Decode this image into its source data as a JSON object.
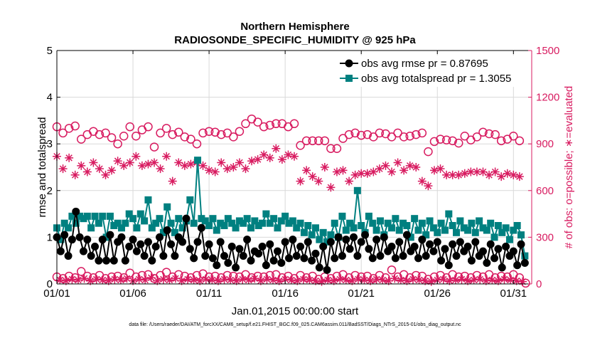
{
  "chart_data": {
    "type": "line",
    "title": "Northern Hemisphere",
    "subtitle": "RADIOSONDE_SPECIFIC_HUMIDITY @ 925 hPa",
    "xlabel": "Jan.01,2015 00:00:00 start",
    "ylabel": "rmse and totalspread",
    "y2label": "# of obs: o=possible; ∗=evaluated",
    "footnote": "data file: /Users/raeder/DAI/ATM_forcXX/CAM6_setup/f.e21.FHIST_BGC.f09_025.CAM6assim.011/BadSST/Diags_NTrS_2015-01/obs_diag_output.nc",
    "xlim": [
      1,
      32.2
    ],
    "ylim": [
      0,
      5
    ],
    "y2lim": [
      0,
      1500
    ],
    "xticks": [
      1,
      6,
      11,
      16,
      21,
      26,
      31
    ],
    "xtick_labels": [
      "01/01",
      "01/06",
      "01/11",
      "01/16",
      "01/21",
      "01/26",
      "01/31"
    ],
    "yticks": [
      0,
      1,
      2,
      3,
      4,
      5
    ],
    "y2ticks": [
      0,
      300,
      600,
      900,
      1200,
      1500
    ],
    "grid": true,
    "legend_position": "top-right",
    "colors": {
      "rmse": "#000000",
      "spread": "#008080",
      "obs_count": "#d81b60",
      "axis": "#000000",
      "grid": "#d9d9d9"
    },
    "x": [
      1.0,
      1.25,
      1.5,
      1.75,
      2.0,
      2.25,
      2.5,
      2.75,
      3.0,
      3.25,
      3.5,
      3.75,
      4.0,
      4.25,
      4.5,
      4.75,
      5.0,
      5.25,
      5.5,
      5.75,
      6.0,
      6.25,
      6.5,
      6.75,
      7.0,
      7.25,
      7.5,
      7.75,
      8.0,
      8.25,
      8.5,
      8.75,
      9.0,
      9.25,
      9.5,
      9.75,
      10.0,
      10.25,
      10.5,
      10.75,
      11.0,
      11.25,
      11.5,
      11.75,
      12.0,
      12.25,
      12.5,
      12.75,
      13.0,
      13.25,
      13.5,
      13.75,
      14.0,
      14.25,
      14.5,
      14.75,
      15.0,
      15.25,
      15.5,
      15.75,
      16.0,
      16.25,
      16.5,
      16.75,
      17.0,
      17.25,
      17.5,
      17.75,
      18.0,
      18.25,
      18.5,
      18.75,
      19.0,
      19.25,
      19.5,
      19.75,
      20.0,
      20.25,
      20.5,
      20.75,
      21.0,
      21.25,
      21.5,
      21.75,
      22.0,
      22.25,
      22.5,
      22.75,
      23.0,
      23.25,
      23.5,
      23.75,
      24.0,
      24.25,
      24.5,
      24.75,
      25.0,
      25.25,
      25.5,
      25.75,
      26.0,
      26.25,
      26.5,
      26.75,
      27.0,
      27.25,
      27.5,
      27.75,
      28.0,
      28.25,
      28.5,
      28.75,
      29.0,
      29.25,
      29.5,
      29.75,
      30.0,
      30.25,
      30.5,
      30.75,
      31.0,
      31.25,
      31.5,
      31.75
    ],
    "series": [
      {
        "name": "obs avg rmse pr = 0.87695",
        "axis": "left",
        "marker": "filled-circle",
        "values": [
          1.0,
          0.7,
          1.05,
          0.6,
          0.95,
          1.55,
          1.0,
          0.7,
          0.95,
          0.6,
          0.8,
          0.5,
          0.95,
          0.5,
          1.05,
          0.5,
          0.9,
          1.0,
          0.5,
          0.8,
          0.95,
          0.7,
          0.85,
          0.6,
          0.9,
          0.5,
          0.8,
          1.0,
          0.6,
          1.15,
          0.85,
          0.6,
          1.0,
          0.9,
          1.4,
          0.75,
          0.55,
          0.9,
          1.2,
          0.6,
          0.85,
          0.55,
          0.4,
          0.9,
          0.6,
          0.45,
          0.8,
          0.35,
          0.75,
          0.6,
          0.95,
          0.5,
          0.7,
          0.65,
          0.8,
          0.4,
          0.85,
          0.5,
          0.7,
          0.45,
          0.9,
          0.55,
          0.95,
          0.6,
          0.8,
          0.55,
          0.9,
          0.5,
          0.65,
          0.35,
          0.8,
          0.3,
          0.9,
          0.55,
          1.0,
          0.6,
          0.95,
          0.75,
          1.0,
          0.6,
          0.9,
          1.05,
          0.75,
          0.55,
          0.95,
          0.6,
          1.0,
          0.7,
          0.8,
          0.55,
          0.9,
          0.6,
          1.05,
          0.7,
          0.8,
          0.55,
          0.95,
          0.6,
          0.85,
          0.7,
          0.9,
          0.5,
          0.75,
          0.4,
          0.85,
          0.6,
          0.9,
          0.7,
          0.8,
          0.5,
          0.9,
          0.6,
          0.7,
          0.45,
          0.85,
          0.55,
          0.75,
          0.35,
          0.8,
          0.6,
          0.7,
          0.4,
          0.85,
          0.45
        ]
      },
      {
        "name": "obs avg totalspread pr = 1.3055",
        "axis": "left",
        "marker": "filled-square",
        "values": [
          1.2,
          0.95,
          1.3,
          1.2,
          1.45,
          1.3,
          1.45,
          1.4,
          1.45,
          1.2,
          1.45,
          1.3,
          1.45,
          1.0,
          1.45,
          1.25,
          1.3,
          1.2,
          1.3,
          1.5,
          1.4,
          1.2,
          1.5,
          1.35,
          1.8,
          1.2,
          1.3,
          1.4,
          1.1,
          1.65,
          1.3,
          1.1,
          1.4,
          1.2,
          1.35,
          1.8,
          1.3,
          2.65,
          1.4,
          1.35,
          1.25,
          1.4,
          1.15,
          1.3,
          1.25,
          1.4,
          1.3,
          1.2,
          1.35,
          1.3,
          1.4,
          1.2,
          1.35,
          1.25,
          1.3,
          1.5,
          1.3,
          1.4,
          1.2,
          1.35,
          1.45,
          1.3,
          1.35,
          1.2,
          1.3,
          1.1,
          1.25,
          1.05,
          1.2,
          0.95,
          1.1,
          0.9,
          1.05,
          1.3,
          1.0,
          1.45,
          1.15,
          1.3,
          1.2,
          2.0,
          1.25,
          1.1,
          1.45,
          1.3,
          1.15,
          1.35,
          1.05,
          1.3,
          1.2,
          1.4,
          1.15,
          1.3,
          1.25,
          1.0,
          1.4,
          1.15,
          1.3,
          1.05,
          1.35,
          1.2,
          1.1,
          1.3,
          1.15,
          1.5,
          1.25,
          1.1,
          1.35,
          1.2,
          1.15,
          1.3,
          1.1,
          1.35,
          1.2,
          1.15,
          1.3,
          1.0,
          1.25,
          1.1,
          1.2,
          0.95,
          1.15,
          1.25,
          1.05,
          0.6
        ]
      },
      {
        "name": "possible",
        "axis": "right",
        "marker": "open-circle",
        "x": [
          1.0,
          1.4,
          1.8,
          2.2,
          2.6,
          3.0,
          3.4,
          3.8,
          4.2,
          4.6,
          5.0,
          5.4,
          5.8,
          6.2,
          6.6,
          7.0,
          7.4,
          7.8,
          8.2,
          8.6,
          9.0,
          9.4,
          9.8,
          10.2,
          10.6,
          11.0,
          11.4,
          11.8,
          12.2,
          12.6,
          13.0,
          13.4,
          13.8,
          14.2,
          14.6,
          15.0,
          15.4,
          15.8,
          16.2,
          16.6,
          17.0,
          17.4,
          17.8,
          18.2,
          18.6,
          19.0,
          19.4,
          19.8,
          20.2,
          20.6,
          21.0,
          21.4,
          21.8,
          22.2,
          22.6,
          23.0,
          23.4,
          23.8,
          24.2,
          24.6,
          25.0,
          25.4,
          25.8,
          26.2,
          26.6,
          27.0,
          27.4,
          27.8,
          28.2,
          28.6,
          29.0,
          29.4,
          29.8,
          30.2,
          30.6,
          31.0,
          31.4
        ],
        "values": [
          1010,
          970,
          1000,
          1015,
          930,
          960,
          980,
          960,
          970,
          940,
          900,
          950,
          1010,
          950,
          990,
          1010,
          880,
          970,
          1000,
          960,
          975,
          945,
          930,
          900,
          970,
          980,
          975,
          960,
          970,
          945,
          980,
          1030,
          1060,
          1040,
          1010,
          1020,
          1030,
          1030,
          1010,
          1030,
          890,
          920,
          920,
          920,
          920,
          870,
          870,
          935,
          960,
          970,
          955,
          960,
          945,
          970,
          965,
          945,
          970,
          945,
          950,
          960,
          970,
          850,
          915,
          930,
          925,
          920,
          905,
          950,
          925,
          945,
          975,
          965,
          960,
          920,
          930,
          950,
          920
        ]
      },
      {
        "name": "evaluated",
        "axis": "right",
        "marker": "asterisk",
        "x": [
          1.0,
          1.4,
          1.8,
          2.2,
          2.6,
          3.0,
          3.4,
          3.8,
          4.2,
          4.6,
          5.0,
          5.4,
          5.8,
          6.2,
          6.6,
          7.0,
          7.4,
          7.8,
          8.2,
          8.6,
          9.0,
          9.4,
          9.8,
          10.2,
          10.6,
          11.0,
          11.4,
          11.8,
          12.2,
          12.6,
          13.0,
          13.4,
          13.8,
          14.2,
          14.6,
          15.0,
          15.4,
          15.8,
          16.2,
          16.6,
          17.0,
          17.4,
          17.8,
          18.2,
          18.6,
          19.0,
          19.4,
          19.8,
          20.2,
          20.6,
          21.0,
          21.4,
          21.8,
          22.2,
          22.6,
          23.0,
          23.4,
          23.8,
          24.2,
          24.6,
          25.0,
          25.4,
          25.8,
          26.2,
          26.6,
          27.0,
          27.4,
          27.8,
          28.2,
          28.6,
          29.0,
          29.4,
          29.8,
          30.2,
          30.6,
          31.0,
          31.4
        ],
        "values": [
          820,
          740,
          810,
          700,
          760,
          720,
          780,
          740,
          700,
          730,
          790,
          760,
          780,
          820,
          760,
          770,
          780,
          740,
          820,
          660,
          780,
          760,
          770,
          780,
          760,
          730,
          720,
          780,
          740,
          750,
          780,
          740,
          790,
          800,
          830,
          810,
          870,
          800,
          830,
          820,
          660,
          730,
          690,
          660,
          750,
          620,
          720,
          730,
          660,
          700,
          710,
          710,
          720,
          740,
          760,
          720,
          780,
          730,
          760,
          750,
          660,
          630,
          730,
          740,
          700,
          700,
          700,
          710,
          720,
          720,
          720,
          700,
          720,
          690,
          710,
          700,
          690
        ]
      },
      {
        "name": "low possible",
        "axis": "right",
        "marker": "open-circle",
        "x": [
          1.0,
          1.4,
          1.8,
          2.2,
          2.6,
          3.0,
          3.4,
          3.8,
          4.2,
          4.6,
          5.0,
          5.4,
          5.8,
          6.2,
          6.6,
          7.0,
          7.4,
          7.8,
          8.2,
          8.6,
          9.0,
          9.4,
          9.8,
          10.2,
          10.6,
          11.0,
          11.4,
          11.8,
          12.2,
          12.6,
          13.0,
          13.4,
          13.8,
          14.2,
          14.6,
          15.0,
          15.4,
          15.8,
          16.2,
          16.6,
          17.0,
          17.4,
          17.8,
          18.2,
          18.6,
          19.0,
          19.4,
          19.8,
          20.2,
          20.6,
          21.0,
          21.4,
          21.8,
          22.2,
          22.6,
          23.0,
          23.4,
          23.8,
          24.2,
          24.6,
          25.0,
          25.4,
          25.8,
          26.2,
          26.6,
          27.0,
          27.4,
          27.8,
          28.2,
          28.6,
          29.0,
          29.4,
          29.8,
          30.2,
          30.6,
          31.0,
          31.4,
          31.8
        ],
        "values": [
          45,
          35,
          50,
          40,
          80,
          50,
          40,
          55,
          35,
          45,
          50,
          40,
          70,
          45,
          55,
          60,
          35,
          55,
          75,
          45,
          60,
          50,
          40,
          55,
          65,
          45,
          50,
          40,
          55,
          50,
          45,
          60,
          40,
          50,
          45,
          55,
          60,
          40,
          50,
          35,
          55,
          40,
          50,
          30,
          45,
          35,
          50,
          60,
          40,
          55,
          45,
          50,
          35,
          55,
          40,
          90,
          45,
          60,
          40,
          55,
          50,
          30,
          45,
          55,
          40,
          60,
          45,
          50,
          40,
          55,
          45,
          60,
          40,
          50,
          45,
          60,
          40,
          5
        ]
      },
      {
        "name": "low evaluated",
        "axis": "right",
        "marker": "asterisk",
        "x": [
          1.2,
          1.6,
          2.0,
          2.4,
          2.8,
          3.2,
          3.6,
          4.0,
          4.4,
          4.8,
          5.2,
          5.6,
          6.0,
          6.4,
          6.8,
          7.2,
          7.6,
          8.0,
          8.4,
          8.8,
          9.2,
          9.6,
          10.0,
          10.4,
          10.8,
          11.2,
          11.6,
          12.0,
          12.4,
          12.8,
          13.2,
          13.6,
          14.0,
          14.4,
          14.8,
          15.2,
          15.6,
          16.0,
          16.4,
          16.8,
          17.2,
          17.6,
          18.0,
          18.4,
          18.8,
          19.2,
          19.6,
          20.0,
          20.4,
          20.8,
          21.2,
          21.6,
          22.0,
          22.4,
          22.8,
          23.2,
          23.6,
          24.0,
          24.4,
          24.8,
          25.2,
          25.6,
          26.0,
          26.4,
          26.8,
          27.2,
          27.6,
          28.0,
          28.4,
          28.8,
          29.2,
          29.6,
          30.0,
          30.4,
          30.8,
          31.2,
          31.6
        ],
        "values": [
          25,
          20,
          30,
          25,
          35,
          20,
          30,
          25,
          20,
          30,
          25,
          35,
          20,
          30,
          25,
          40,
          20,
          30,
          25,
          35,
          20,
          30,
          25,
          20,
          30,
          25,
          20,
          30,
          25,
          20,
          30,
          25,
          35,
          20,
          30,
          25,
          20,
          30,
          25,
          20,
          30,
          25,
          20,
          15,
          25,
          20,
          30,
          25,
          20,
          30,
          25,
          20,
          30,
          25,
          20,
          35,
          25,
          20,
          30,
          25,
          20,
          15,
          25,
          30,
          20,
          25,
          30,
          20,
          25,
          30,
          20,
          25,
          20,
          30,
          25,
          20,
          15
        ]
      }
    ]
  }
}
